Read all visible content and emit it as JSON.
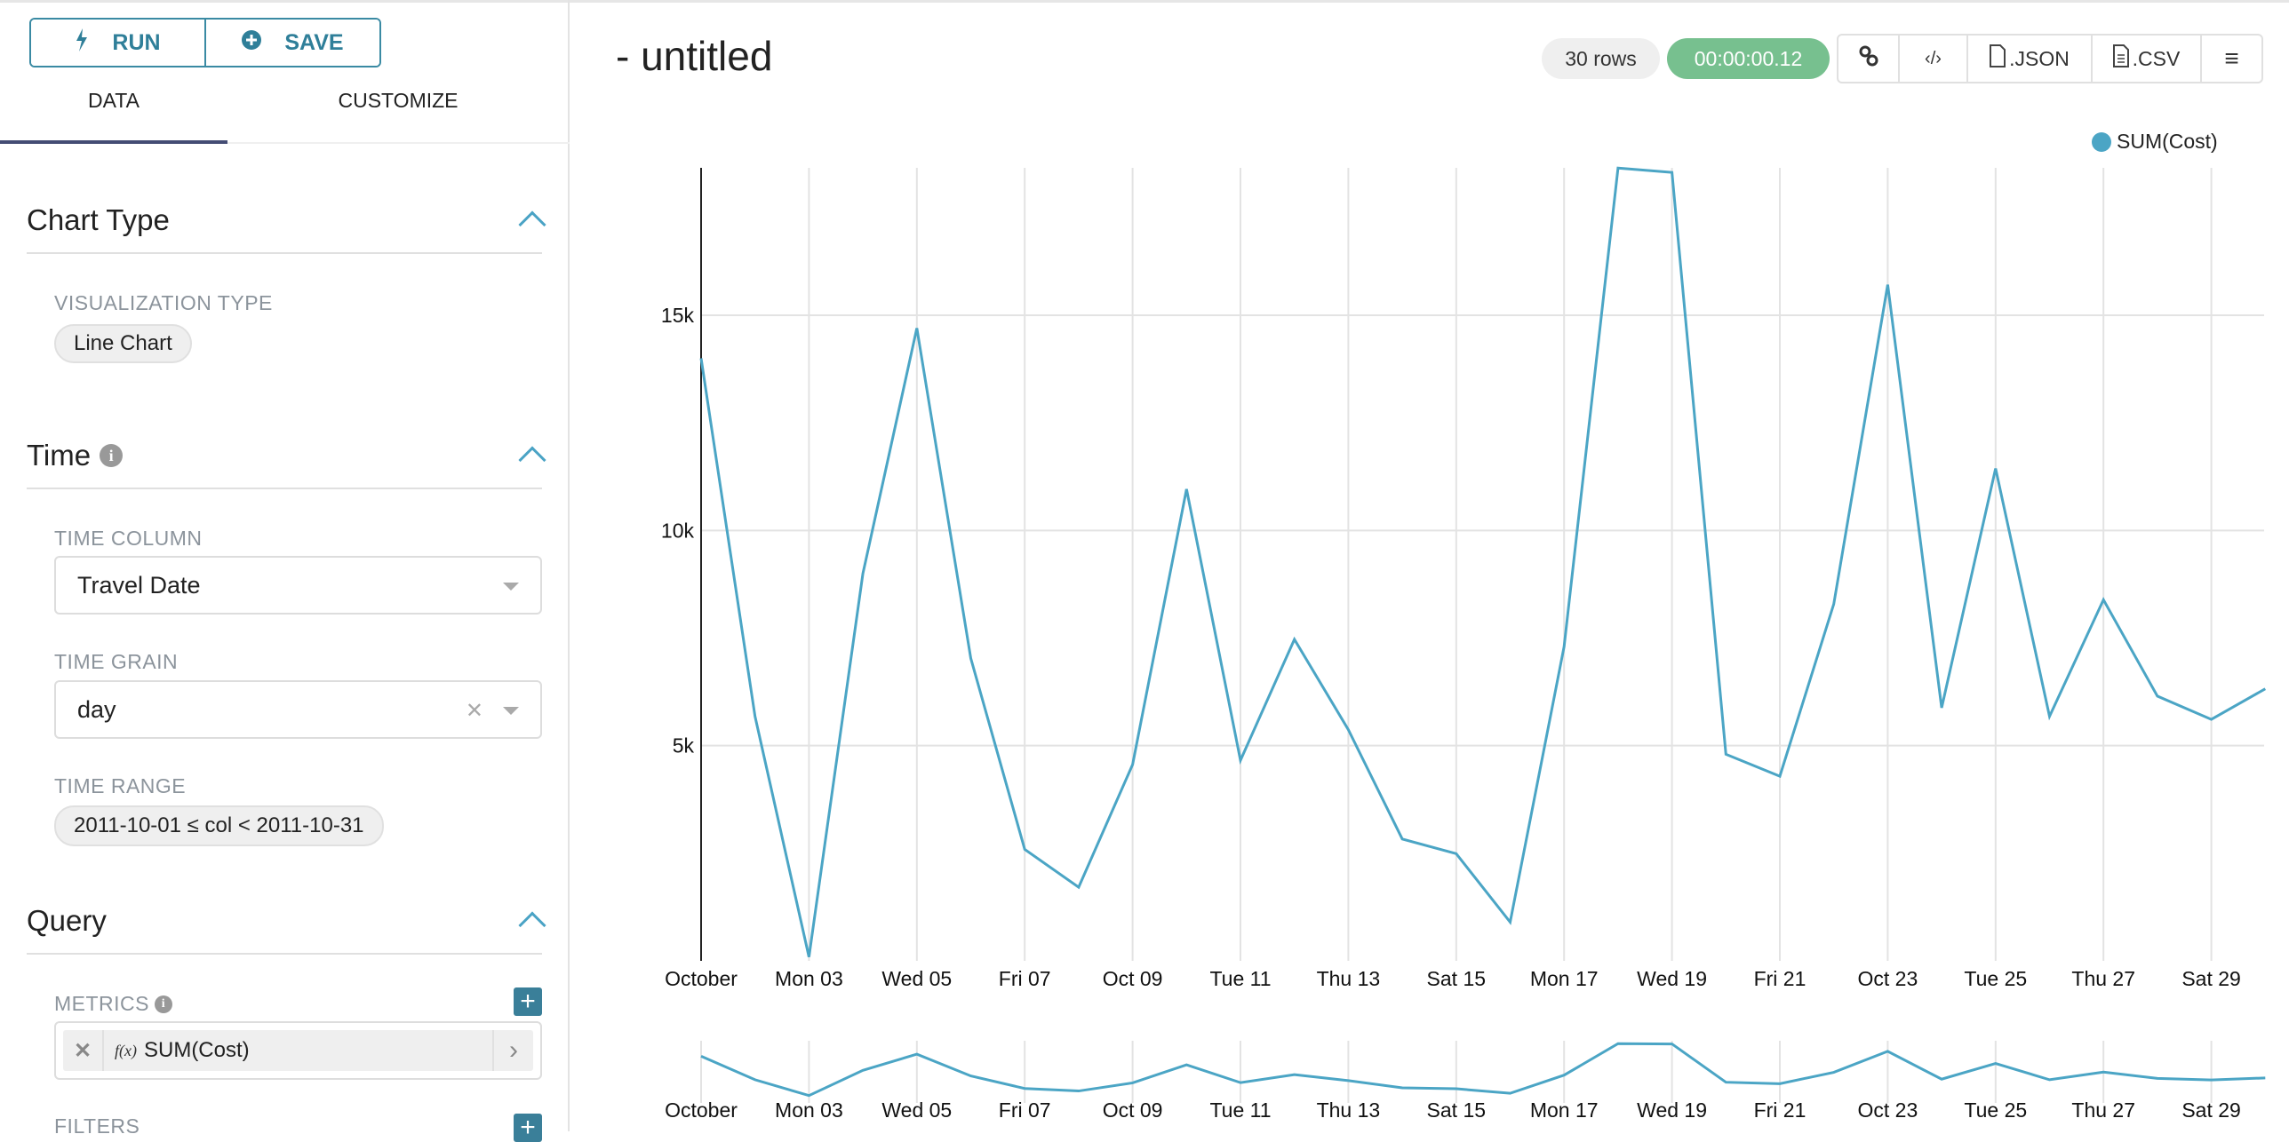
{
  "toolbar": {
    "run_label": "RUN",
    "save_label": "SAVE"
  },
  "tabs": [
    {
      "label": "DATA",
      "active": true
    },
    {
      "label": "CUSTOMIZE",
      "active": false
    }
  ],
  "sections": {
    "chart_type": {
      "title": "Chart Type",
      "viz_label": "VISUALIZATION TYPE",
      "viz_value": "Line Chart"
    },
    "time": {
      "title": "Time",
      "time_column_label": "TIME COLUMN",
      "time_column_value": "Travel Date",
      "time_grain_label": "TIME GRAIN",
      "time_grain_value": "day",
      "time_range_label": "TIME RANGE",
      "time_range_value": "2011-10-01 ≤ col < 2011-10-31"
    },
    "query": {
      "title": "Query",
      "metrics_label": "METRICS",
      "metric_value": "SUM(Cost)",
      "fx": "f(x)",
      "filters_label": "FILTERS"
    }
  },
  "header": {
    "title": "- untitled",
    "rows": "30 rows",
    "timer": "00:00:00.12",
    "json_label": ".JSON",
    "csv_label": ".CSV"
  },
  "colors": {
    "accent": "#3a8aa3",
    "series": "#4ba5c5",
    "timer": "#77c08f"
  },
  "chart_data": {
    "type": "line",
    "legend": {
      "entries": [
        "SUM(Cost)"
      ],
      "placement": "top-right"
    },
    "x": [
      "2011-10-01",
      "2011-10-02",
      "2011-10-03",
      "2011-10-04",
      "2011-10-05",
      "2011-10-06",
      "2011-10-07",
      "2011-10-08",
      "2011-10-09",
      "2011-10-10",
      "2011-10-11",
      "2011-10-12",
      "2011-10-13",
      "2011-10-14",
      "2011-10-15",
      "2011-10-16",
      "2011-10-17",
      "2011-10-18",
      "2011-10-19",
      "2011-10-20",
      "2011-10-21",
      "2011-10-22",
      "2011-10-23",
      "2011-10-24",
      "2011-10-25",
      "2011-10-26",
      "2011-10-27",
      "2011-10-28",
      "2011-10-29",
      "2011-10-30"
    ],
    "series": [
      {
        "name": "SUM(Cost)",
        "values": [
          14000,
          5680,
          90,
          9000,
          14700,
          7030,
          2590,
          1710,
          4560,
          10960,
          4660,
          7470,
          5370,
          2830,
          2490,
          900,
          7300,
          18420,
          18320,
          4800,
          4290,
          8290,
          15710,
          5880,
          11440,
          5680,
          8390,
          6150,
          5610,
          6320
        ]
      }
    ],
    "x_tick_labels": [
      "October",
      "Mon 03",
      "Wed 05",
      "Fri 07",
      "Oct 09",
      "Tue 11",
      "Thu 13",
      "Sat 15",
      "Mon 17",
      "Wed 19",
      "Fri 21",
      "Oct 23",
      "Tue 25",
      "Thu 27",
      "Sat 29"
    ],
    "y_ticks": [
      {
        "value": 5000,
        "label": "5k"
      },
      {
        "value": 10000,
        "label": "10k"
      },
      {
        "value": 15000,
        "label": "15k"
      }
    ],
    "ylim": [
      0,
      18500
    ],
    "grid": true,
    "range_selector": true
  }
}
